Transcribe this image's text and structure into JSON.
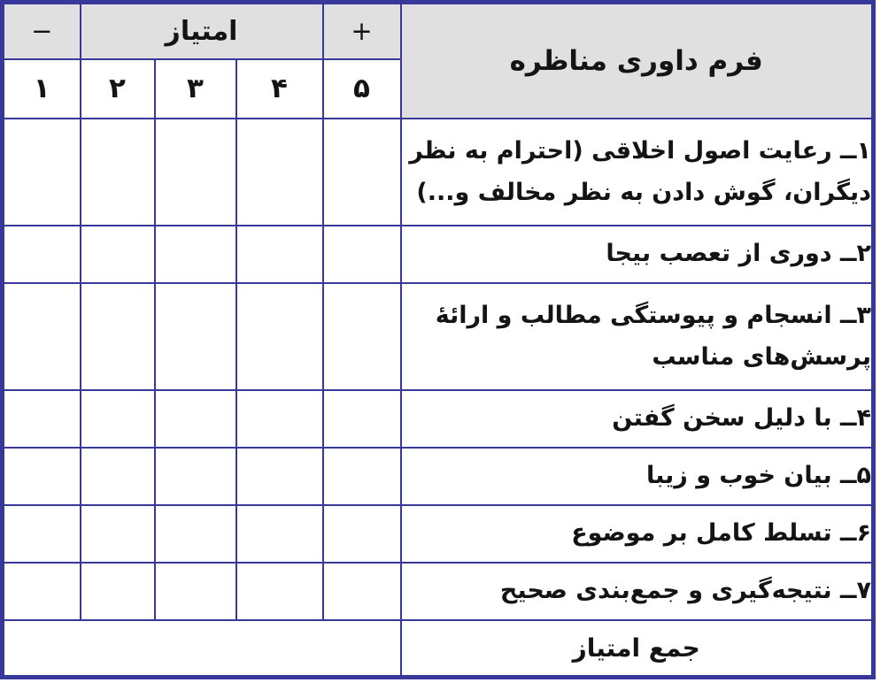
{
  "form": {
    "title": "فرم داوری مناظره",
    "score_header": "امتیاز",
    "plus_label": "+",
    "minus_label": "−",
    "score_values": [
      "۵",
      "۴",
      "۳",
      "۲",
      "۱"
    ],
    "criteria": [
      {
        "label": "۱ــ رعایت اصول اخلاقی (احترام به نظر دیگران، گوش دادن به نظر مخالف و...)"
      },
      {
        "label": "۲ــ دوری از تعصب بیجا"
      },
      {
        "label": "۳ــ انسجام و پیوستگی مطالب و ارائهٔ پرسش‌های مناسب"
      },
      {
        "label": "۴ــ با دلیل سخن گفتن"
      },
      {
        "label": "۵ــ بیان خوب و زیبا"
      },
      {
        "label": "۶ــ تسلط کامل بر موضوع"
      },
      {
        "label": "۷ــ نتیجه‌گیری و جمع‌بندی صحیح"
      }
    ],
    "total_label": "جمع امتیاز"
  },
  "colors": {
    "border": "#38389b",
    "header_bg": "#e0e0e0",
    "text": "#141414"
  }
}
